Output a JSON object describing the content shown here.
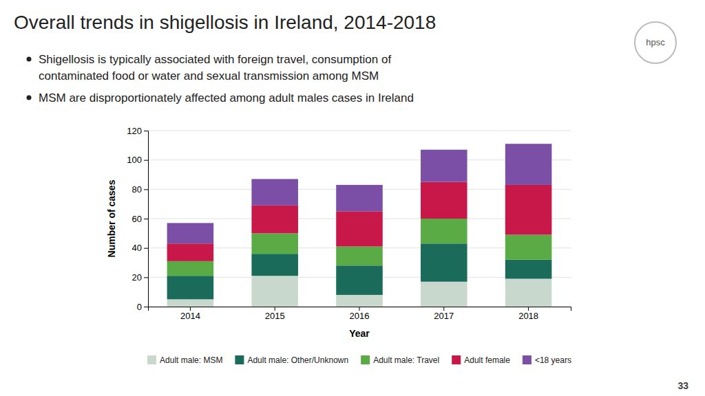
{
  "chart_data": {
    "type": "bar",
    "stacked": true,
    "title": "Overall trends in shigellosis in Ireland, 2014-2018",
    "annotations": [
      "Shigellosis is typically associated with foreign travel, consumption of",
      "contaminated food or water and sexual transmission among MSM",
      "MSM are disproportionately affected among adult males cases in Ireland",
      "hpsc",
      "33"
    ],
    "xlabel": "Year",
    "ylabel": "Number of cases",
    "categories": [
      "2014",
      "2015",
      "2016",
      "2017",
      "2018"
    ],
    "series": [
      {
        "name": "Adult male: MSM",
        "color": "#c8d8cc",
        "values": [
          5,
          21,
          8,
          17,
          19
        ]
      },
      {
        "name": "Adult male: Other/Unknown",
        "color": "#1a6b5a",
        "values": [
          16,
          15,
          20,
          26,
          13
        ]
      },
      {
        "name": "Adult male: Travel",
        "color": "#5aab46",
        "values": [
          10,
          14,
          13,
          17,
          17
        ]
      },
      {
        "name": "Adult female",
        "color": "#c8184a",
        "values": [
          12,
          19,
          24,
          25,
          34
        ]
      },
      {
        "name": "<18 years",
        "color": "#7b4fa6",
        "values": [
          14,
          18,
          18,
          22,
          28
        ]
      }
    ],
    "ylim": [
      0,
      120
    ],
    "yticks": [
      0,
      20,
      40,
      60,
      80,
      100,
      120
    ],
    "grid": true,
    "legend": "bottom"
  }
}
